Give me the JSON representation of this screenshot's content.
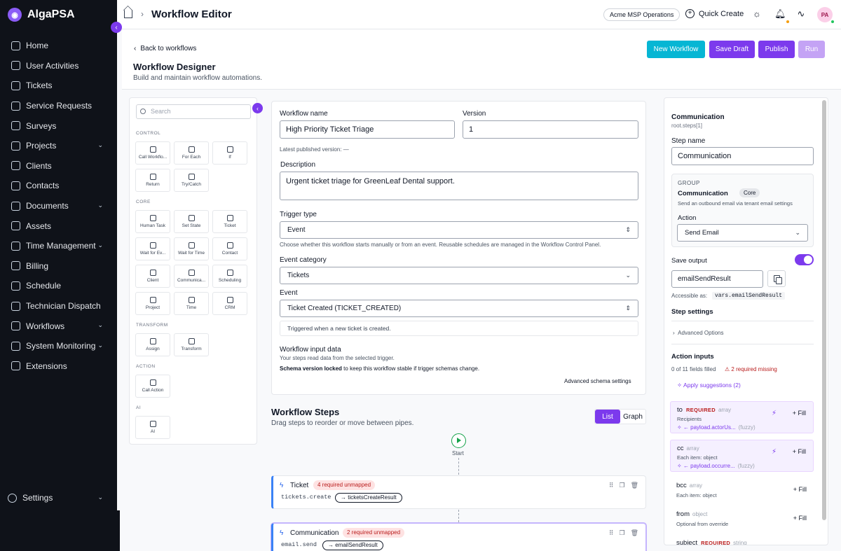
{
  "app": {
    "name": "AlgaPSA"
  },
  "sidebar": {
    "items": [
      {
        "label": "Home",
        "icon": "home-icon"
      },
      {
        "label": "User Activities",
        "icon": "activity-icon"
      },
      {
        "label": "Tickets",
        "icon": "ticket-icon"
      },
      {
        "label": "Service Requests",
        "icon": "service-icon"
      },
      {
        "label": "Surveys",
        "icon": "star-icon"
      },
      {
        "label": "Projects",
        "icon": "layers-icon",
        "chevron": true
      },
      {
        "label": "Clients",
        "icon": "building-icon"
      },
      {
        "label": "Contacts",
        "icon": "users-icon"
      },
      {
        "label": "Documents",
        "icon": "document-icon",
        "chevron": true
      },
      {
        "label": "Assets",
        "icon": "monitor-icon"
      },
      {
        "label": "Time Management",
        "icon": "clock-icon",
        "chevron": true
      },
      {
        "label": "Billing",
        "icon": "billing-icon"
      },
      {
        "label": "Schedule",
        "icon": "calendar-icon"
      },
      {
        "label": "Technician Dispatch",
        "icon": "map-pin-icon"
      },
      {
        "label": "Workflows",
        "icon": "workflow-icon",
        "chevron": true
      },
      {
        "label": "System Monitoring",
        "icon": "grid-icon",
        "chevron": true
      },
      {
        "label": "Extensions",
        "icon": "puzzle-icon"
      }
    ],
    "settings_label": "Settings"
  },
  "topbar": {
    "title": "Workflow Editor",
    "tenant": "Acme MSP Operations",
    "quick_create": "Quick Create",
    "avatar_initials": "PA"
  },
  "header": {
    "back_link": "Back to workflows",
    "title": "Workflow Designer",
    "subtitle": "Build and maintain workflow automations.",
    "buttons": {
      "new_workflow": "New Workflow",
      "save_draft": "Save Draft",
      "publish": "Publish",
      "run": "Run"
    },
    "colors": {
      "new_workflow": "#06b6d4",
      "primary": "#7c3aed",
      "disabled": "#c4a3f5"
    }
  },
  "palette": {
    "search_placeholder": "Search",
    "sections": {
      "control": "CONTROL",
      "core": "CORE",
      "transform": "TRANSFORM",
      "action": "ACTION",
      "ai": "AI"
    },
    "tiles": {
      "call_workflow": "Call Workflo...",
      "for_each": "For Each",
      "if": "If",
      "return": "Return",
      "try_catch": "Try/Catch",
      "human_task": "Human Task",
      "set_state": "Set State",
      "ticket": "Ticket",
      "wait_for_event": "Wait for Ev...",
      "wait_for_time": "Wait for Time",
      "contact": "Contact",
      "client": "Client",
      "communication": "Communica...",
      "scheduling": "Scheduling",
      "project": "Project",
      "time": "Time",
      "crm": "CRM",
      "assign": "Assign",
      "transform": "Transform",
      "call_action": "Call Action",
      "ai": "AI"
    }
  },
  "form": {
    "name_label": "Workflow name",
    "name_value": "High Priority Ticket Triage",
    "version_label": "Version",
    "version_value": "1",
    "published_note": "Latest published version: —",
    "description_label": "Description",
    "description_value": "Urgent ticket triage for GreenLeaf Dental support.",
    "trigger_type_label": "Trigger type",
    "trigger_type_value": "Event",
    "trigger_hint": "Choose whether this workflow starts manually or from an event. Reusable schedules are managed in the Workflow Control Panel.",
    "event_category_label": "Event category",
    "event_category_value": "Tickets",
    "event_label": "Event",
    "event_value": "Ticket Created (TICKET_CREATED)",
    "event_desc": "Triggered when a new ticket is created.",
    "input_data_label": "Workflow input data",
    "input_data_hint": "Your steps read data from the selected trigger.",
    "schema_locked_strong": "Schema version locked",
    "schema_locked_rest": "to keep this workflow stable if trigger schemas change.",
    "advanced_schema": "Advanced schema settings"
  },
  "steps": {
    "title": "Workflow Steps",
    "subtitle": "Drag steps to reorder or move between pipes.",
    "view_list": "List",
    "view_graph": "Graph",
    "start_label": "Start",
    "items": [
      {
        "name": "Ticket",
        "badge": "4 required unmapped",
        "type": "tickets.create",
        "output": "→ ticketsCreateResult"
      },
      {
        "name": "Communication",
        "badge": "2 required unmapped",
        "type": "email.send",
        "output": "→ emailSendResult"
      }
    ]
  },
  "inspector": {
    "title": "Communication",
    "path": "root.steps[1]",
    "step_name_label": "Step name",
    "step_name_value": "Communication",
    "group_label": "GROUP",
    "group_name": "Communication",
    "group_badge": "Core",
    "group_desc": "Send an outbound email via tenant email settings",
    "action_label": "Action",
    "action_value": "Send Email",
    "save_output_label": "Save output",
    "output_value": "emailSendResult",
    "accessible_label": "Accessible as:",
    "accessible_value": "vars.emailSendResult",
    "step_settings_label": "Step settings",
    "advanced_options": "Advanced Options",
    "action_inputs_label": "Action inputs",
    "filled_count": "0 of 11 fields filled",
    "missing_count": "2 required missing",
    "apply_suggestions": "Apply suggestions (2)",
    "fill_label": "Fill",
    "required_tag": "REQUIRED",
    "fields": [
      {
        "name": "to",
        "type": "array",
        "desc": "Recipients",
        "mapping": "← payload.actorUs...",
        "fuzzy": "(fuzzy)"
      },
      {
        "name": "cc",
        "type": "array",
        "desc": "Each item: object",
        "mapping": "← payload.occurre...",
        "fuzzy": "(fuzzy)"
      },
      {
        "name": "bcc",
        "type": "array",
        "desc": "Each item: object"
      },
      {
        "name": "from",
        "type": "object",
        "desc": "Optional from override"
      },
      {
        "name": "subject",
        "type": "string"
      }
    ]
  }
}
